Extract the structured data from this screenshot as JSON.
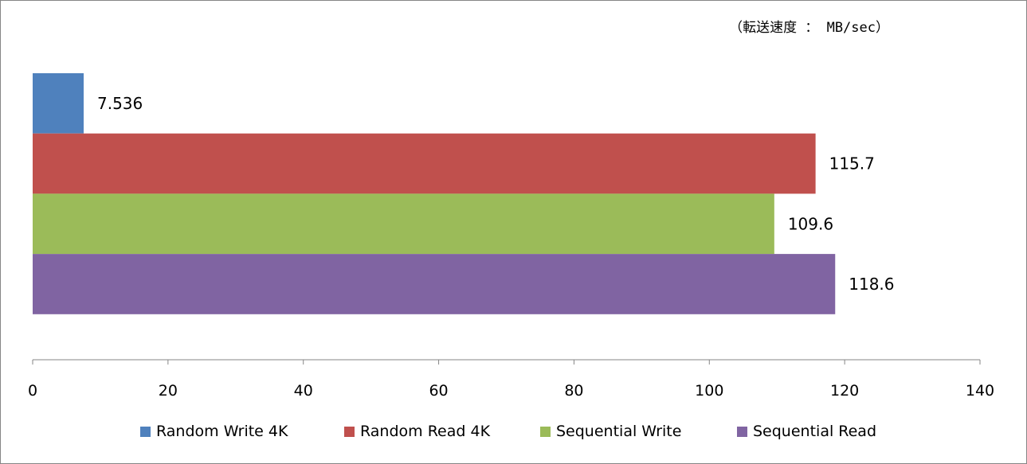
{
  "chart_data": {
    "type": "bar",
    "orientation": "horizontal",
    "unit_note": "（転送速度 ： MB/sec）",
    "series": [
      {
        "name": "Random Write 4K",
        "value": 7.536,
        "label": "7.536",
        "color": "#4F81BD"
      },
      {
        "name": "Random Read 4K",
        "value": 115.7,
        "label": "115.7",
        "color": "#C0504D"
      },
      {
        "name": "Sequential Write",
        "value": 109.6,
        "label": "109.6",
        "color": "#9BBB59"
      },
      {
        "name": "Sequential Read",
        "value": 118.6,
        "label": "118.6",
        "color": "#8064A2"
      }
    ],
    "xlim": [
      0,
      140
    ],
    "xticks": [
      "0",
      "20",
      "40",
      "60",
      "80",
      "100",
      "120",
      "140"
    ],
    "grid": false,
    "legend_position": "bottom"
  }
}
